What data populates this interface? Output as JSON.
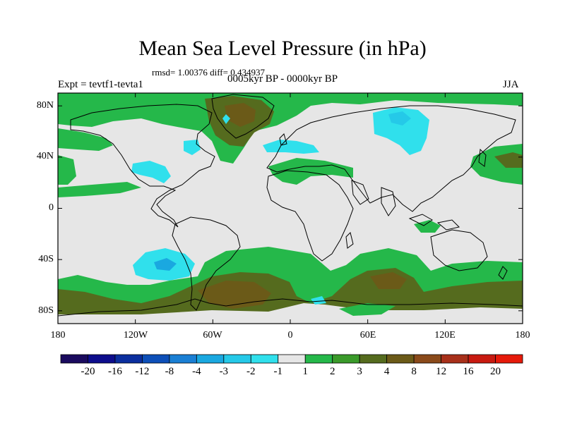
{
  "title": "Mean Sea Level Pressure (in hPa)",
  "stats": "rmsd= 1.00376 diff= 0.434937",
  "experiment": "Expt = tevtf1-tevta1",
  "period": "0005kyr BP - 0000kyr BP",
  "season": "JJA",
  "lat_labels": [
    "80N",
    "40N",
    "0",
    "40S",
    "80S"
  ],
  "lon_labels": [
    "180",
    "120W",
    "60W",
    "0",
    "60E",
    "120E",
    "180"
  ],
  "colorbar": {
    "labels": [
      "-20",
      "-16",
      "-12",
      "-8",
      "-4",
      "-3",
      "-2",
      "-1",
      "1",
      "2",
      "3",
      "4",
      "8",
      "12",
      "16",
      "20"
    ],
    "colors": [
      "#1a0a5e",
      "#0d0d8c",
      "#0b2e9e",
      "#0d4fb8",
      "#1a7fd4",
      "#1aa8e0",
      "#25c9e8",
      "#30e0ec",
      "#e6e6e6",
      "#25b84a",
      "#3a9a2a",
      "#556b1e",
      "#6b5a18",
      "#8a4a1a",
      "#a8301a",
      "#c81a10",
      "#e61a0a"
    ]
  },
  "colors": {
    "neutral": "#e6e6e6",
    "pos1": "#25b84a",
    "pos2": "#3a9a2a",
    "pos3": "#556b1e",
    "pos4": "#6b5a18",
    "neg1": "#30e0ec",
    "neg2": "#25c9e8",
    "neg3": "#1aa8e0"
  }
}
